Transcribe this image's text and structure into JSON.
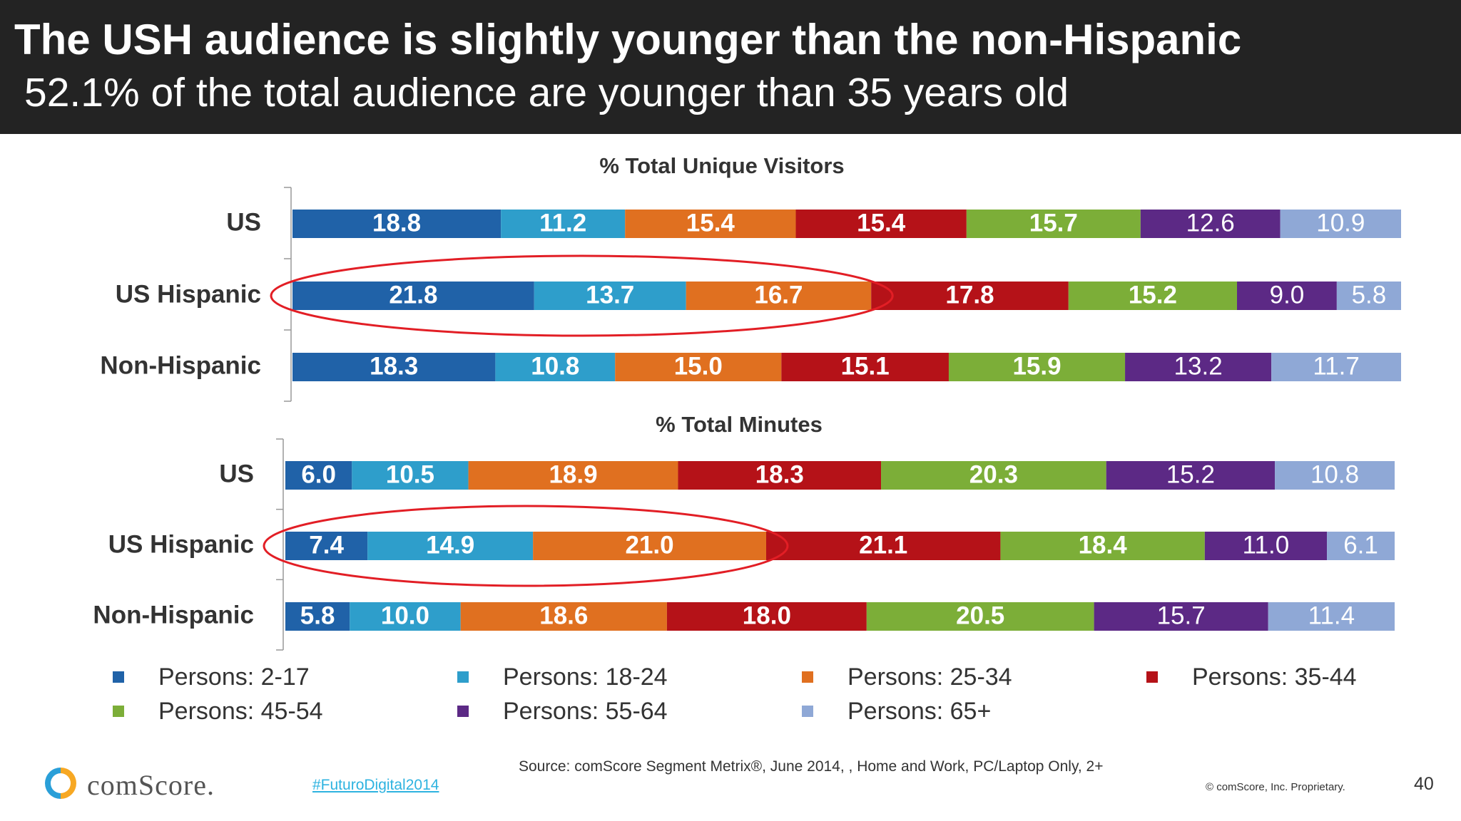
{
  "header": {
    "title": "The USH audience is slightly younger than the non-Hispanic",
    "subtitle": "52.1% of the total audience are younger than 35 years old"
  },
  "colors": {
    "header_bg": "#232323",
    "highlight_ellipse": "#e21e25"
  },
  "chart_data": [
    {
      "type": "bar",
      "orientation": "horizontal",
      "stacked": true,
      "normalized": "percent",
      "title": "% Total Unique Visitors",
      "categories": [
        "US",
        "US Hispanic",
        "Non-Hispanic"
      ],
      "series": [
        {
          "name": "Persons: 2-17",
          "color": "#2062a8",
          "values": [
            18.8,
            21.8,
            18.3
          ]
        },
        {
          "name": "Persons: 18-24",
          "color": "#2e9ecb",
          "values": [
            11.2,
            13.7,
            10.8
          ]
        },
        {
          "name": "Persons: 25-34",
          "color": "#e07020",
          "values": [
            15.4,
            16.7,
            15.0
          ]
        },
        {
          "name": "Persons: 35-44",
          "color": "#b51218",
          "values": [
            15.4,
            17.8,
            15.1
          ]
        },
        {
          "name": "Persons: 45-54",
          "color": "#7cae38",
          "values": [
            15.7,
            15.2,
            15.9
          ]
        },
        {
          "name": "Persons: 55-64",
          "color": "#5c2985",
          "values": [
            12.6,
            9.0,
            13.2
          ]
        },
        {
          "name": "Persons: 65+",
          "color": "#8fa8d6",
          "values": [
            10.9,
            5.8,
            11.7
          ]
        }
      ],
      "highlight": {
        "category": "US Hispanic",
        "series": [
          "Persons: 2-17",
          "Persons: 18-24",
          "Persons: 25-34"
        ]
      }
    },
    {
      "type": "bar",
      "orientation": "horizontal",
      "stacked": true,
      "normalized": "percent",
      "title": "% Total Minutes",
      "categories": [
        "US",
        "US Hispanic",
        "Non-Hispanic"
      ],
      "series": [
        {
          "name": "Persons: 2-17",
          "color": "#2062a8",
          "values": [
            6.0,
            7.4,
            5.8
          ]
        },
        {
          "name": "Persons: 18-24",
          "color": "#2e9ecb",
          "values": [
            10.5,
            14.9,
            10.0
          ]
        },
        {
          "name": "Persons: 25-34",
          "color": "#e07020",
          "values": [
            18.9,
            21.0,
            18.6
          ]
        },
        {
          "name": "Persons: 35-44",
          "color": "#b51218",
          "values": [
            18.3,
            21.1,
            18.0
          ]
        },
        {
          "name": "Persons: 45-54",
          "color": "#7cae38",
          "values": [
            20.3,
            18.4,
            20.5
          ]
        },
        {
          "name": "Persons: 55-64",
          "color": "#5c2985",
          "values": [
            15.2,
            11.0,
            15.7
          ]
        },
        {
          "name": "Persons: 65+",
          "color": "#8fa8d6",
          "values": [
            10.8,
            6.1,
            11.4
          ]
        }
      ],
      "highlight": {
        "category": "US Hispanic",
        "series": [
          "Persons: 2-17",
          "Persons: 18-24",
          "Persons: 25-34"
        ]
      }
    }
  ],
  "legend": {
    "items": [
      {
        "label": "Persons: 2-17",
        "color": "#2062a8"
      },
      {
        "label": "Persons: 18-24",
        "color": "#2e9ecb"
      },
      {
        "label": "Persons: 25-34",
        "color": "#e07020"
      },
      {
        "label": "Persons: 35-44",
        "color": "#b51218"
      },
      {
        "label": "Persons: 45-54",
        "color": "#7cae38"
      },
      {
        "label": "Persons: 55-64",
        "color": "#5c2985"
      },
      {
        "label": "Persons: 65+",
        "color": "#8fa8d6"
      }
    ]
  },
  "footer": {
    "logo_text": "comScore.",
    "hashtag": "#FuturoDigital2014",
    "source": "Source: comScore Segment Metrix®, June 2014, , Home and Work, PC/Laptop Only, 2+",
    "copyright": "© comScore, Inc. Proprietary.",
    "page_number": "40"
  }
}
